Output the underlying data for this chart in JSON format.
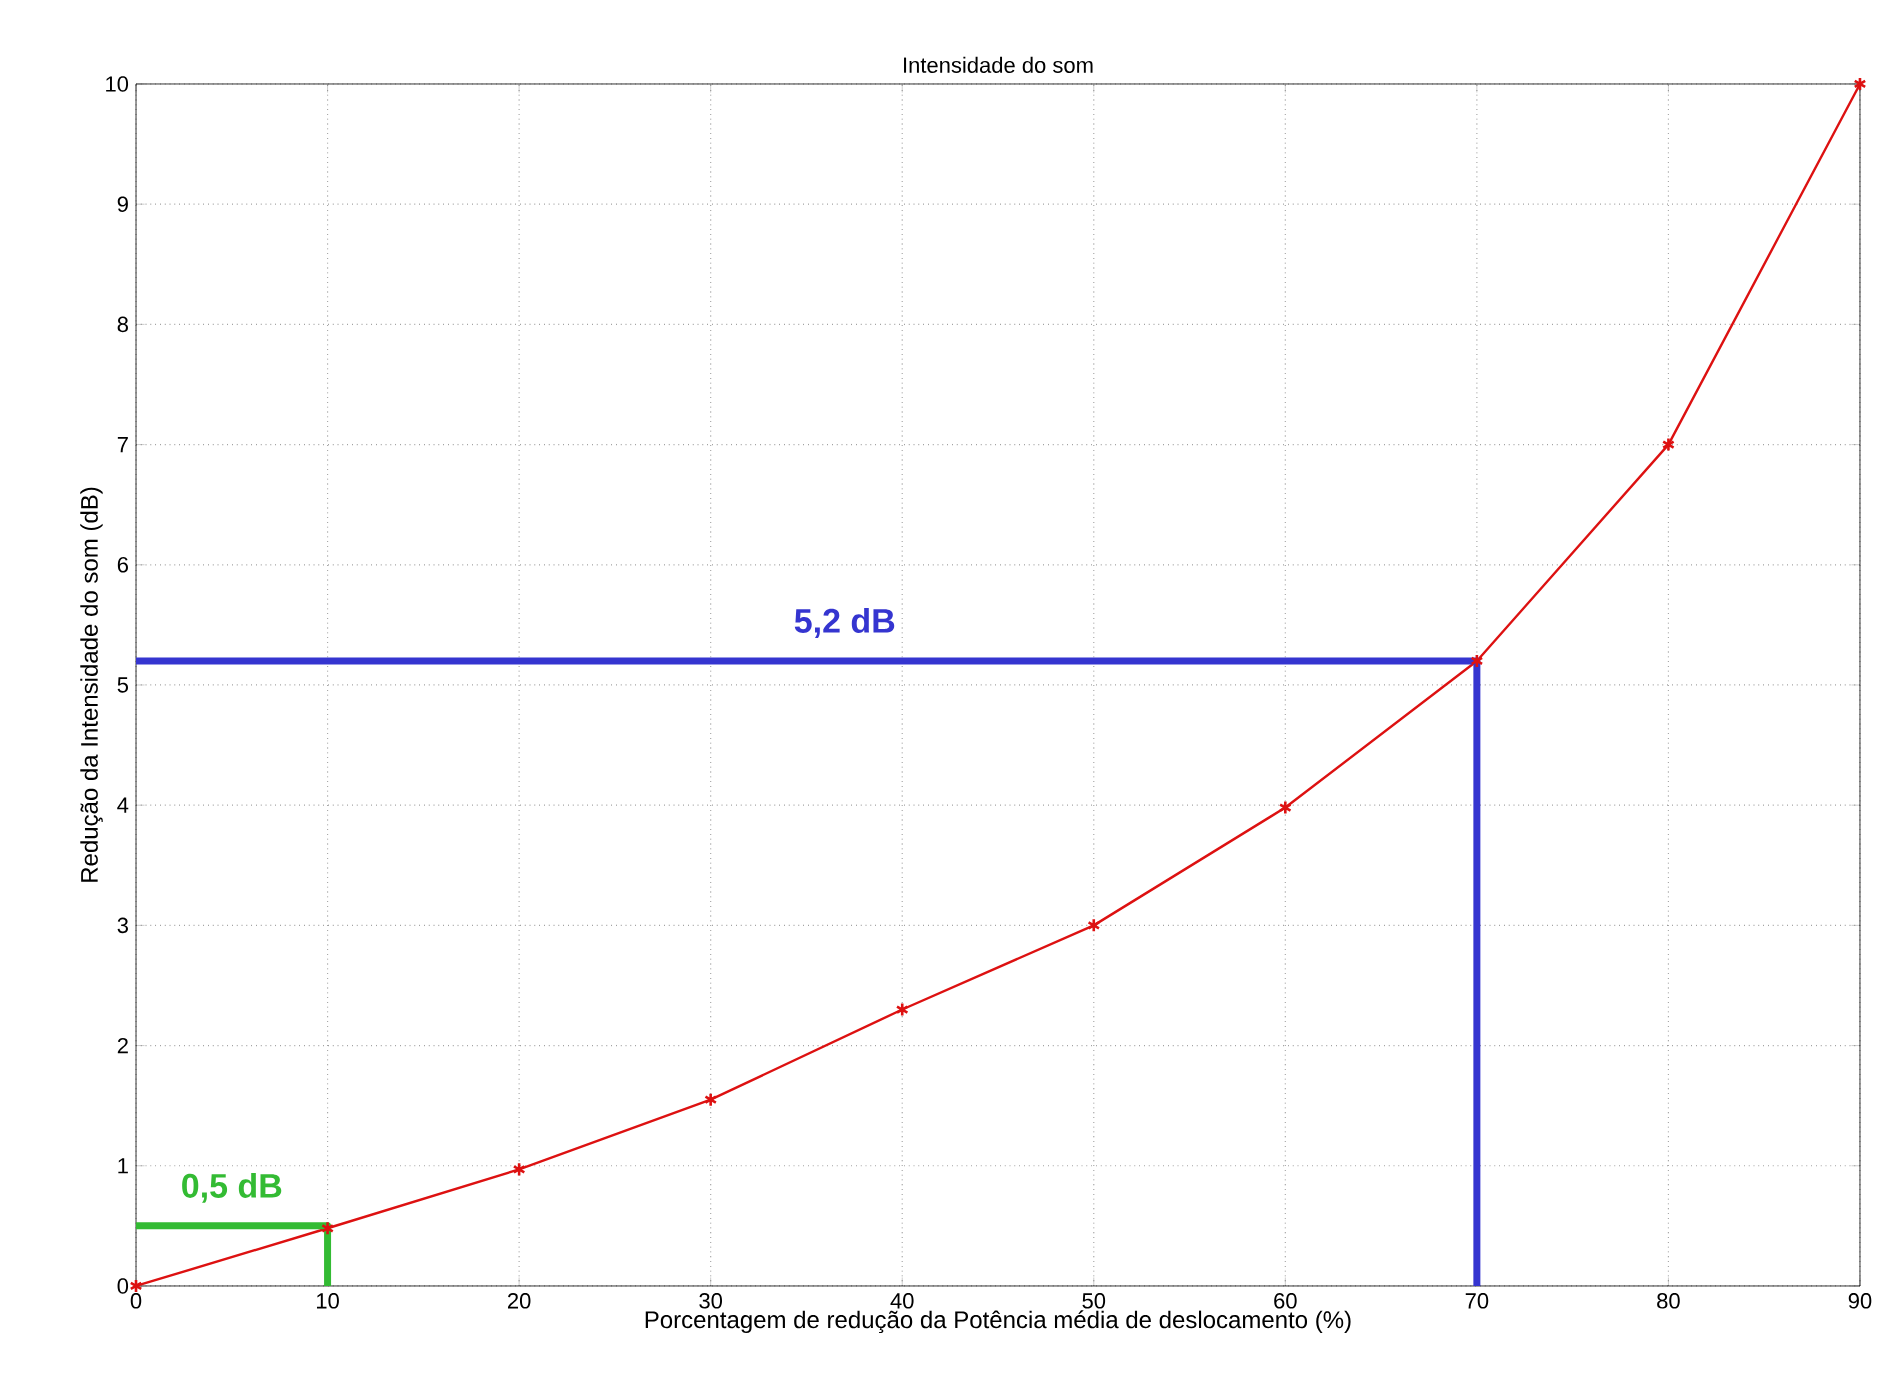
{
  "chart_data": {
    "type": "line",
    "title": "Intensidade do som",
    "xlabel": "Porcentagem de redução da Potência média de deslocamento (%)",
    "ylabel": "Redução da Intensidade do som (dB)",
    "x": [
      0,
      10,
      20,
      30,
      40,
      50,
      60,
      70,
      80,
      90
    ],
    "series": [
      {
        "color": "#dd1111",
        "values": [
          0,
          0.48,
          0.97,
          1.55,
          2.3,
          3.0,
          3.98,
          5.2,
          7.0,
          10.0
        ],
        "marker": "cross"
      },
      {
        "color": "#3535d0",
        "x": [
          0,
          70,
          70
        ],
        "values": [
          5.2,
          5.2,
          0
        ],
        "marker": "none"
      },
      {
        "color": "#33bb33",
        "x": [
          0,
          10,
          10
        ],
        "values": [
          0.5,
          0.5,
          0
        ],
        "marker": "none"
      }
    ],
    "annotations": [
      {
        "text": "5,2 dB",
        "x": 37,
        "y": 5.2
      },
      {
        "text": "0,5 dB",
        "x": 5,
        "y": 0.5
      }
    ],
    "xlim": [
      0,
      90
    ],
    "ylim": [
      0,
      10
    ],
    "xticks": [
      0,
      10,
      20,
      30,
      40,
      50,
      60,
      70,
      80,
      90
    ],
    "yticks": [
      0,
      1,
      2,
      3,
      4,
      5,
      6,
      7,
      8,
      9,
      10
    ],
    "grid": true,
    "line_style": "solid"
  }
}
